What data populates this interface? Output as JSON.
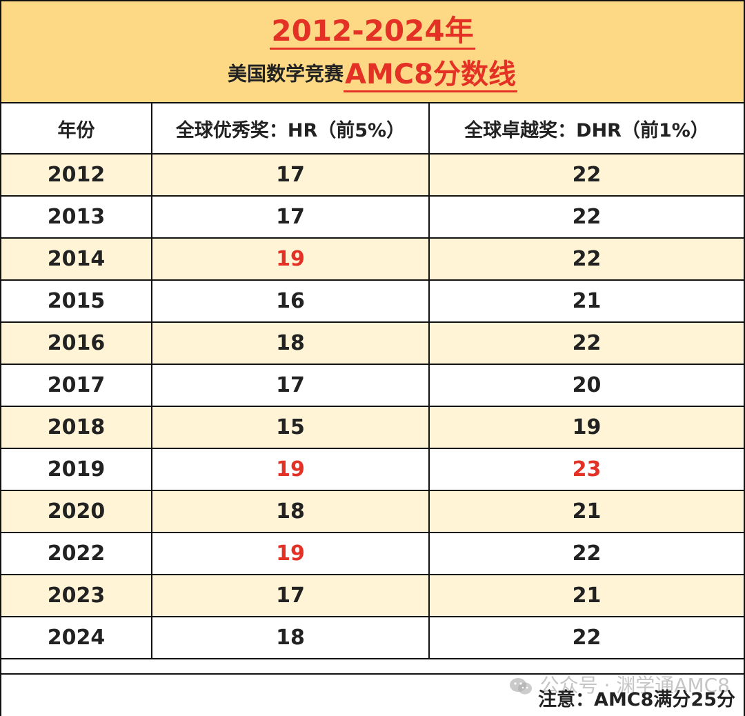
{
  "header": {
    "title": "2012-2024年",
    "subtitle_prefix": "美国数学竞赛",
    "subtitle_highlight": "AMC8分数线"
  },
  "table": {
    "columns": [
      "年份",
      "全球优秀奖：HR（前5%）",
      "全球卓越奖：DHR（前1%）"
    ],
    "rows": [
      {
        "year": "2012",
        "hr": "17",
        "dhr": "22",
        "hr_red": false,
        "dhr_red": false
      },
      {
        "year": "2013",
        "hr": "17",
        "dhr": "22",
        "hr_red": false,
        "dhr_red": false
      },
      {
        "year": "2014",
        "hr": "19",
        "dhr": "22",
        "hr_red": true,
        "dhr_red": false
      },
      {
        "year": "2015",
        "hr": "16",
        "dhr": "21",
        "hr_red": false,
        "dhr_red": false
      },
      {
        "year": "2016",
        "hr": "18",
        "dhr": "22",
        "hr_red": false,
        "dhr_red": false
      },
      {
        "year": "2017",
        "hr": "17",
        "dhr": "20",
        "hr_red": false,
        "dhr_red": false
      },
      {
        "year": "2018",
        "hr": "15",
        "dhr": "19",
        "hr_red": false,
        "dhr_red": false
      },
      {
        "year": "2019",
        "hr": "19",
        "dhr": "23",
        "hr_red": true,
        "dhr_red": true
      },
      {
        "year": "2020",
        "hr": "18",
        "dhr": "21",
        "hr_red": false,
        "dhr_red": false
      },
      {
        "year": "2022",
        "hr": "19",
        "dhr": "22",
        "hr_red": true,
        "dhr_red": false
      },
      {
        "year": "2023",
        "hr": "17",
        "dhr": "21",
        "hr_red": false,
        "dhr_red": false
      },
      {
        "year": "2024",
        "hr": "18",
        "dhr": "22",
        "hr_red": false,
        "dhr_red": false
      }
    ]
  },
  "footer": {
    "note": "注意：AMC8满分25分",
    "watermark": "公众号 · 渊学通AMC8",
    "watermark_icon": "wechat-icon"
  },
  "colors": {
    "header_bg": "#fdd985",
    "accent_red": "#e33126",
    "stripe": "#fff5d6"
  }
}
